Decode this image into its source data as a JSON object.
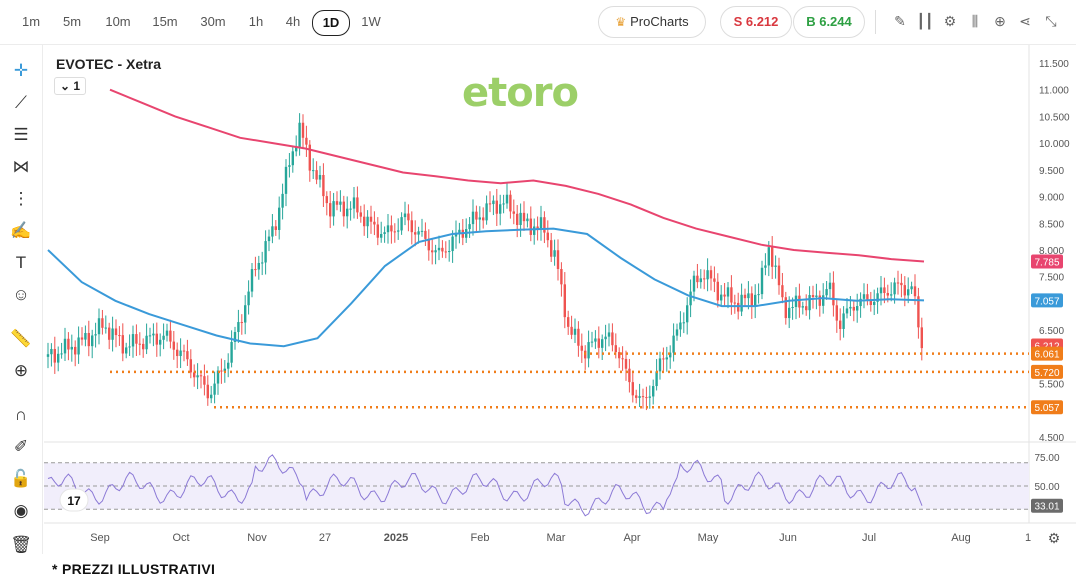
{
  "toolbar": {
    "timeframes": [
      "1m",
      "5m",
      "10m",
      "15m",
      "30m",
      "1h",
      "4h",
      "1D",
      "1W"
    ],
    "active_timeframe": "1D",
    "prochart_label": "ProCharts",
    "sell_label": "S 6.212",
    "buy_label": "B 6.244"
  },
  "chart_header": {
    "symbol": "EVOTEC - Xetra",
    "interval": "1"
  },
  "logo_text": "etoro",
  "footer": "* PREZZI ILLUSTRATIVI",
  "colors": {
    "up": "#26a69a",
    "down": "#ef5350",
    "ma_fast": "#3a9ad9",
    "ma_slow": "#e8456f",
    "rsi": "#8c7ad6",
    "support": "#f07d1a"
  },
  "chart_data": {
    "type": "candlestick",
    "title": "EVOTEC - Xetra",
    "y_ticks": [
      "11.500",
      "11.000",
      "10.500",
      "10.000",
      "9.500",
      "9.000",
      "8.500",
      "8.000",
      "7.500",
      "6.500",
      "5.500",
      "4.500"
    ],
    "ylim": [
      4.5,
      11.5
    ],
    "x_ticks": [
      "Sep",
      "Oct",
      "Nov",
      "27",
      "2025",
      "Feb",
      "Mar",
      "Apr",
      "May",
      "Jun",
      "Jul",
      "Aug",
      "1"
    ],
    "price_labels": [
      {
        "text": "7.785",
        "value": 7.785,
        "color": "#e8456f"
      },
      {
        "text": "7.057",
        "value": 7.057,
        "color": "#3a9ad9"
      },
      {
        "text": "6.212",
        "value": 6.212,
        "color": "#ef5350"
      },
      {
        "text": "6.061",
        "value": 6.061,
        "color": "#f07d1a"
      },
      {
        "text": "5.720",
        "value": 5.72,
        "color": "#f07d1a"
      },
      {
        "text": "5.057",
        "value": 5.057,
        "color": "#f07d1a"
      }
    ],
    "support_levels": [
      6.061,
      5.72,
      5.057
    ],
    "ma_slow": [
      11.0,
      10.75,
      10.5,
      10.3,
      10.1,
      10.0,
      9.9,
      9.75,
      9.6,
      9.45,
      9.38,
      9.3,
      9.25,
      9.3,
      9.2,
      9.05,
      8.85,
      8.6,
      8.4,
      8.25,
      8.1,
      8.0,
      7.95,
      7.9,
      7.83,
      7.785
    ],
    "ma_fast": [
      8.0,
      7.4,
      7.05,
      6.8,
      6.6,
      6.4,
      6.25,
      6.2,
      6.35,
      7.0,
      7.7,
      8.15,
      8.3,
      8.35,
      8.38,
      8.4,
      8.3,
      7.85,
      7.45,
      7.15,
      6.95,
      6.95,
      7.05,
      7.1,
      7.05,
      7.08,
      7.057
    ],
    "rsi": {
      "levels": [
        "75.00",
        "50.00",
        "33.01"
      ],
      "range": [
        0,
        100
      ],
      "last": 33.01
    }
  }
}
